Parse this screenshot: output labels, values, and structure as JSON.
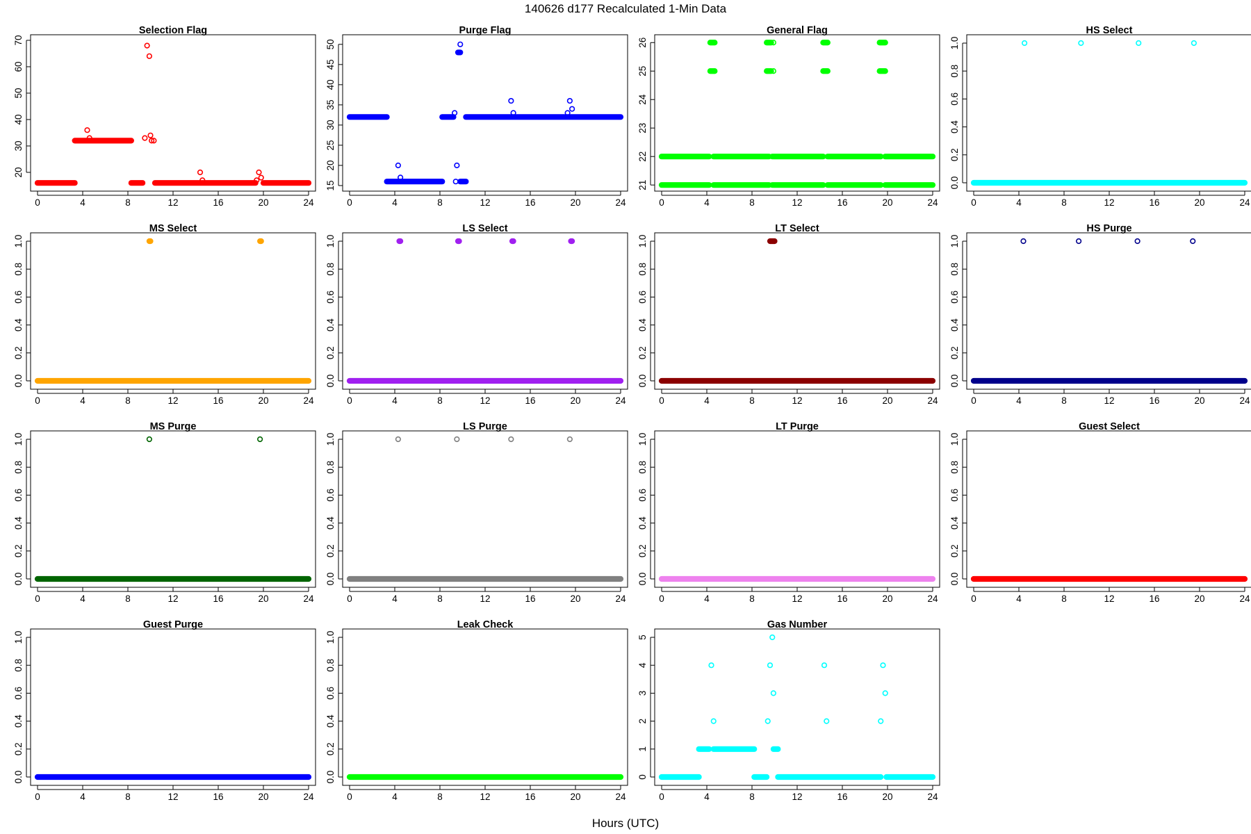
{
  "figure": {
    "title": "140626   d177   Recalculated 1-Min Data",
    "xlabel": "Hours (UTC)"
  },
  "chart_data": [
    {
      "type": "scatter",
      "title": "Selection Flag",
      "color": "#ff0000",
      "xlim": [
        0,
        24
      ],
      "xticks": [
        0,
        4,
        8,
        12,
        16,
        20,
        24
      ],
      "ylim": [
        15,
        70
      ],
      "yticks": [
        20,
        30,
        40,
        50,
        60,
        70
      ],
      "runs": [
        {
          "x": [
            0,
            3.3
          ],
          "y": 16
        },
        {
          "x": [
            3.3,
            8.3
          ],
          "y": 32
        },
        {
          "x": [
            8.3,
            9.3
          ],
          "y": 16
        },
        {
          "x": [
            10.4,
            19.3
          ],
          "y": 16
        },
        {
          "x": [
            20.0,
            24
          ],
          "y": 16
        }
      ],
      "points": [
        {
          "x": 4.4,
          "y": 36
        },
        {
          "x": 4.6,
          "y": 33
        },
        {
          "x": 9.5,
          "y": 33
        },
        {
          "x": 9.7,
          "y": 68
        },
        {
          "x": 9.9,
          "y": 64
        },
        {
          "x": 10.0,
          "y": 34
        },
        {
          "x": 10.1,
          "y": 32
        },
        {
          "x": 10.3,
          "y": 32
        },
        {
          "x": 14.4,
          "y": 20
        },
        {
          "x": 14.6,
          "y": 17
        },
        {
          "x": 19.4,
          "y": 17
        },
        {
          "x": 19.6,
          "y": 20
        },
        {
          "x": 19.8,
          "y": 18
        }
      ]
    },
    {
      "type": "scatter",
      "title": "Purge Flag",
      "color": "#0000ff",
      "xlim": [
        0,
        24
      ],
      "xticks": [
        0,
        4,
        8,
        12,
        16,
        20,
        24
      ],
      "ylim": [
        15,
        51
      ],
      "yticks": [
        15,
        20,
        25,
        30,
        35,
        40,
        45,
        50
      ],
      "runs": [
        {
          "x": [
            0,
            3.3
          ],
          "y": 32
        },
        {
          "x": [
            3.3,
            8.2
          ],
          "y": 16
        },
        {
          "x": [
            8.2,
            9.2
          ],
          "y": 32
        },
        {
          "x": [
            9.6,
            9.8
          ],
          "y": 48
        },
        {
          "x": [
            9.8,
            10.3
          ],
          "y": 16
        },
        {
          "x": [
            10.3,
            24
          ],
          "y": 32
        }
      ],
      "points": [
        {
          "x": 4.3,
          "y": 20
        },
        {
          "x": 4.5,
          "y": 17
        },
        {
          "x": 9.3,
          "y": 33
        },
        {
          "x": 9.5,
          "y": 20
        },
        {
          "x": 9.4,
          "y": 16
        },
        {
          "x": 9.8,
          "y": 50
        },
        {
          "x": 14.3,
          "y": 36
        },
        {
          "x": 14.5,
          "y": 33
        },
        {
          "x": 19.3,
          "y": 33
        },
        {
          "x": 19.5,
          "y": 36
        },
        {
          "x": 19.7,
          "y": 34
        }
      ]
    },
    {
      "type": "scatter",
      "title": "General Flag",
      "color": "#00ff00",
      "xlim": [
        0,
        24
      ],
      "xticks": [
        0,
        4,
        8,
        12,
        16,
        20,
        24
      ],
      "ylim": [
        20.98,
        26.08
      ],
      "yticks": [
        21,
        22,
        23,
        24,
        25,
        26
      ],
      "runs": [
        {
          "x": [
            0,
            4.2
          ],
          "y": 22
        },
        {
          "x": [
            4.6,
            9.5
          ],
          "y": 22
        },
        {
          "x": [
            9.9,
            14.3
          ],
          "y": 22
        },
        {
          "x": [
            14.7,
            19.4
          ],
          "y": 22
        },
        {
          "x": [
            19.8,
            24
          ],
          "y": 22
        },
        {
          "x": [
            0,
            4.2
          ],
          "y": 21
        },
        {
          "x": [
            4.6,
            9.5
          ],
          "y": 21
        },
        {
          "x": [
            9.9,
            14.3
          ],
          "y": 21
        },
        {
          "x": [
            14.7,
            19.4
          ],
          "y": 21
        },
        {
          "x": [
            19.8,
            24
          ],
          "y": 21
        },
        {
          "x": [
            4.3,
            4.7
          ],
          "y": 26
        },
        {
          "x": [
            9.3,
            9.7
          ],
          "y": 26
        },
        {
          "x": [
            14.3,
            14.7
          ],
          "y": 26
        },
        {
          "x": [
            19.3,
            19.8
          ],
          "y": 26
        },
        {
          "x": [
            4.3,
            4.7
          ],
          "y": 25
        },
        {
          "x": [
            9.3,
            9.7
          ],
          "y": 25
        },
        {
          "x": [
            14.3,
            14.7
          ],
          "y": 25
        },
        {
          "x": [
            19.3,
            19.8
          ],
          "y": 25
        }
      ],
      "points": [
        {
          "x": 9.9,
          "y": 26
        },
        {
          "x": 9.9,
          "y": 25
        },
        {
          "x": 9.8,
          "y": 22
        },
        {
          "x": 9.8,
          "y": 21
        }
      ]
    },
    {
      "type": "scatter",
      "title": "HS Select",
      "color": "#00ffff",
      "xlim": [
        0,
        24
      ],
      "xticks": [
        0,
        4,
        8,
        12,
        16,
        20,
        24
      ],
      "ylim": [
        -0.02,
        1.02
      ],
      "yticks": [
        0.0,
        0.2,
        0.4,
        0.6,
        0.8,
        1.0
      ],
      "runs": [
        {
          "x": [
            0,
            24
          ],
          "y": 0
        }
      ],
      "points": [
        {
          "x": 4.5,
          "y": 1
        },
        {
          "x": 9.5,
          "y": 1
        },
        {
          "x": 14.6,
          "y": 1
        },
        {
          "x": 19.5,
          "y": 1
        }
      ]
    },
    {
      "type": "scatter",
      "title": "MS Select",
      "color": "#ffa500",
      "xlim": [
        0,
        24
      ],
      "xticks": [
        0,
        4,
        8,
        12,
        16,
        20,
        24
      ],
      "ylim": [
        -0.02,
        1.02
      ],
      "yticks": [
        0.0,
        0.2,
        0.4,
        0.6,
        0.8,
        1.0
      ],
      "runs": [
        {
          "x": [
            0,
            24
          ],
          "y": 0
        },
        {
          "x": [
            9.9,
            10.0
          ],
          "y": 1
        },
        {
          "x": [
            19.7,
            19.8
          ],
          "y": 1
        }
      ],
      "points": []
    },
    {
      "type": "scatter",
      "title": "LS Select",
      "color": "#a020f0",
      "xlim": [
        0,
        24
      ],
      "xticks": [
        0,
        4,
        8,
        12,
        16,
        20,
        24
      ],
      "ylim": [
        -0.02,
        1.02
      ],
      "yticks": [
        0.0,
        0.2,
        0.4,
        0.6,
        0.8,
        1.0
      ],
      "runs": [
        {
          "x": [
            0,
            24
          ],
          "y": 0
        },
        {
          "x": [
            4.4,
            4.5
          ],
          "y": 1
        },
        {
          "x": [
            9.6,
            9.7
          ],
          "y": 1
        },
        {
          "x": [
            14.4,
            14.5
          ],
          "y": 1
        },
        {
          "x": [
            19.6,
            19.7
          ],
          "y": 1
        }
      ],
      "points": []
    },
    {
      "type": "scatter",
      "title": "LT Select",
      "color": "#8b0000",
      "xlim": [
        0,
        24
      ],
      "xticks": [
        0,
        4,
        8,
        12,
        16,
        20,
        24
      ],
      "ylim": [
        -0.02,
        1.02
      ],
      "yticks": [
        0.0,
        0.2,
        0.4,
        0.6,
        0.8,
        1.0
      ],
      "runs": [
        {
          "x": [
            0,
            24
          ],
          "y": 0
        },
        {
          "x": [
            9.6,
            10.0
          ],
          "y": 1
        }
      ],
      "points": []
    },
    {
      "type": "scatter",
      "title": "HS Purge",
      "color": "#00008b",
      "xlim": [
        0,
        24
      ],
      "xticks": [
        0,
        4,
        8,
        12,
        16,
        20,
        24
      ],
      "ylim": [
        -0.02,
        1.02
      ],
      "yticks": [
        0.0,
        0.2,
        0.4,
        0.6,
        0.8,
        1.0
      ],
      "runs": [
        {
          "x": [
            0,
            24
          ],
          "y": 0
        }
      ],
      "points": [
        {
          "x": 4.4,
          "y": 1
        },
        {
          "x": 9.3,
          "y": 1
        },
        {
          "x": 14.5,
          "y": 1
        },
        {
          "x": 19.4,
          "y": 1
        }
      ]
    },
    {
      "type": "scatter",
      "title": "MS Purge",
      "color": "#006400",
      "xlim": [
        0,
        24
      ],
      "xticks": [
        0,
        4,
        8,
        12,
        16,
        20,
        24
      ],
      "ylim": [
        -0.02,
        1.02
      ],
      "yticks": [
        0.0,
        0.2,
        0.4,
        0.6,
        0.8,
        1.0
      ],
      "runs": [
        {
          "x": [
            0,
            24
          ],
          "y": 0
        }
      ],
      "points": [
        {
          "x": 9.9,
          "y": 1
        },
        {
          "x": 19.7,
          "y": 1
        }
      ]
    },
    {
      "type": "scatter",
      "title": "LS Purge",
      "color": "#808080",
      "xlim": [
        0,
        24
      ],
      "xticks": [
        0,
        4,
        8,
        12,
        16,
        20,
        24
      ],
      "ylim": [
        -0.02,
        1.02
      ],
      "yticks": [
        0.0,
        0.2,
        0.4,
        0.6,
        0.8,
        1.0
      ],
      "runs": [
        {
          "x": [
            0,
            24
          ],
          "y": 0
        }
      ],
      "points": [
        {
          "x": 4.3,
          "y": 1
        },
        {
          "x": 9.5,
          "y": 1
        },
        {
          "x": 14.3,
          "y": 1
        },
        {
          "x": 19.5,
          "y": 1
        }
      ]
    },
    {
      "type": "scatter",
      "title": "LT Purge",
      "color": "#ee82ee",
      "xlim": [
        0,
        24
      ],
      "xticks": [
        0,
        4,
        8,
        12,
        16,
        20,
        24
      ],
      "ylim": [
        -0.02,
        1.02
      ],
      "yticks": [
        0.0,
        0.2,
        0.4,
        0.6,
        0.8,
        1.0
      ],
      "runs": [
        {
          "x": [
            0,
            24
          ],
          "y": 0
        }
      ],
      "points": []
    },
    {
      "type": "scatter",
      "title": "Guest Select",
      "color": "#ff0000",
      "xlim": [
        0,
        24
      ],
      "xticks": [
        0,
        4,
        8,
        12,
        16,
        20,
        24
      ],
      "ylim": [
        -0.02,
        1.02
      ],
      "yticks": [
        0.0,
        0.2,
        0.4,
        0.6,
        0.8,
        1.0
      ],
      "runs": [
        {
          "x": [
            0,
            24
          ],
          "y": 0
        }
      ],
      "points": []
    },
    {
      "type": "scatter",
      "title": "Guest Purge",
      "color": "#0000ff",
      "xlim": [
        0,
        24
      ],
      "xticks": [
        0,
        4,
        8,
        12,
        16,
        20,
        24
      ],
      "ylim": [
        -0.02,
        1.02
      ],
      "yticks": [
        0.0,
        0.2,
        0.4,
        0.6,
        0.8,
        1.0
      ],
      "runs": [
        {
          "x": [
            0,
            24
          ],
          "y": 0
        }
      ],
      "points": []
    },
    {
      "type": "scatter",
      "title": "Leak Check",
      "color": "#00ff00",
      "xlim": [
        0,
        24
      ],
      "xticks": [
        0,
        4,
        8,
        12,
        16,
        20,
        24
      ],
      "ylim": [
        -0.02,
        1.02
      ],
      "yticks": [
        0.0,
        0.2,
        0.4,
        0.6,
        0.8,
        1.0
      ],
      "runs": [
        {
          "x": [
            0,
            24
          ],
          "y": 0
        }
      ],
      "points": []
    },
    {
      "type": "scatter",
      "title": "Gas Number",
      "color": "#00ffff",
      "xlim": [
        0,
        24
      ],
      "xticks": [
        0,
        4,
        8,
        12,
        16,
        20,
        24
      ],
      "ylim": [
        -0.1,
        5.1
      ],
      "yticks": [
        0,
        1,
        2,
        3,
        4,
        5
      ],
      "runs": [
        {
          "x": [
            0,
            3.3
          ],
          "y": 0
        },
        {
          "x": [
            3.3,
            4.2
          ],
          "y": 1
        },
        {
          "x": [
            4.6,
            8.2
          ],
          "y": 1
        },
        {
          "x": [
            8.2,
            9.3
          ],
          "y": 0
        },
        {
          "x": [
            9.9,
            10.3
          ],
          "y": 1
        },
        {
          "x": [
            10.3,
            19.4
          ],
          "y": 0
        },
        {
          "x": [
            19.9,
            24
          ],
          "y": 0
        }
      ],
      "points": [
        {
          "x": 4.4,
          "y": 4
        },
        {
          "x": 4.6,
          "y": 2
        },
        {
          "x": 9.4,
          "y": 2
        },
        {
          "x": 9.6,
          "y": 4
        },
        {
          "x": 9.8,
          "y": 5
        },
        {
          "x": 9.9,
          "y": 3
        },
        {
          "x": 14.4,
          "y": 4
        },
        {
          "x": 14.6,
          "y": 2
        },
        {
          "x": 19.4,
          "y": 2
        },
        {
          "x": 19.6,
          "y": 4
        },
        {
          "x": 19.8,
          "y": 3
        }
      ]
    }
  ]
}
